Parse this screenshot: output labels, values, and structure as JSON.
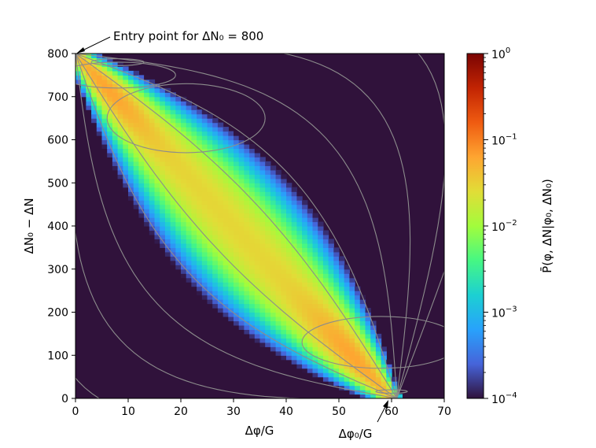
{
  "chart_data": {
    "type": "heatmap",
    "xlabel": "Δφ/G",
    "ylabel": "ΔN₀ − ΔN",
    "colorbar_label": "P̄(φ, ΔN|φ₀, ΔN₀)",
    "xlim": [
      0,
      70
    ],
    "ylim": [
      0,
      800
    ],
    "x_ticks": [
      "0",
      "10",
      "20",
      "30",
      "40",
      "50",
      "60",
      "70"
    ],
    "y_ticks": [
      "0",
      "100",
      "200",
      "300",
      "400",
      "500",
      "600",
      "700",
      "800"
    ],
    "colorbar_scale": "log",
    "colorbar_range": [
      0.0001,
      1
    ],
    "colorbar_ticks": [
      {
        "value": 1,
        "base": "10",
        "exp": "0"
      },
      {
        "value": 0.1,
        "base": "10",
        "exp": "−1"
      },
      {
        "value": 0.01,
        "base": "10",
        "exp": "−2"
      },
      {
        "value": 0.001,
        "base": "10",
        "exp": "−3"
      },
      {
        "value": 0.0001,
        "base": "10",
        "exp": "−4"
      }
    ],
    "colormap": "turbo",
    "background_color": "#30123b",
    "contour_color": "#8c8c8c",
    "annotations": [
      {
        "text": "Entry point for ΔN₀ = 800",
        "x": 0,
        "y": 800
      },
      {
        "text": "Δφ₀/G",
        "x": 60,
        "y": 0
      }
    ]
  }
}
